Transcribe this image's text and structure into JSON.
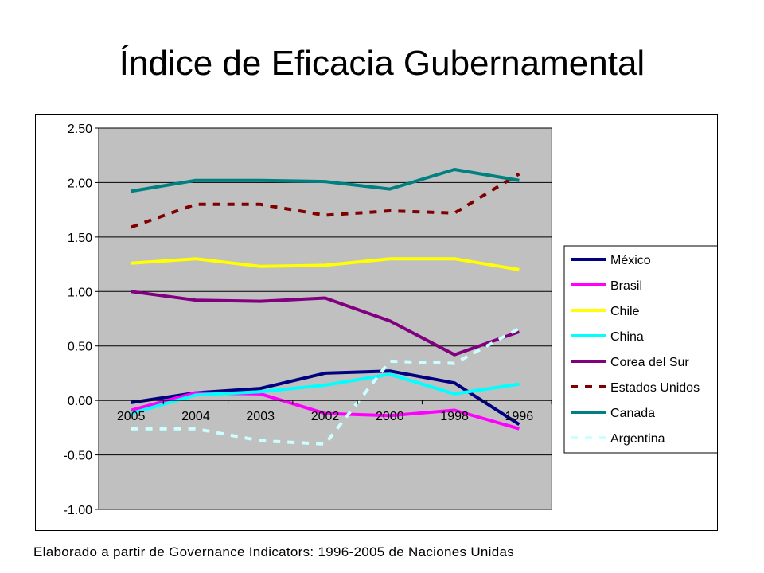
{
  "slide": {
    "title": "Índice de Eficacia Gubernamental",
    "source": "Elaborado a partir de Governance Indicators: 1996-2005 de Naciones Unidas"
  },
  "chart_data": {
    "type": "line",
    "title": "",
    "xlabel": "",
    "ylabel": "",
    "categories": [
      "2005",
      "2004",
      "2003",
      "2002",
      "2000",
      "1998",
      "1996"
    ],
    "ylim": [
      -1.0,
      2.5
    ],
    "ytick_step": 0.5,
    "ytick_labels": [
      "-1.00",
      "-0.50",
      "0.00",
      "0.50",
      "1.00",
      "1.50",
      "2.00",
      "2.50"
    ],
    "grid": true,
    "plot_background": "#c0c0c0",
    "legend_position": "right",
    "series": [
      {
        "name": "México",
        "color": "#000080",
        "dash": false,
        "values": [
          -0.02,
          0.07,
          0.11,
          0.25,
          0.27,
          0.16,
          -0.22
        ]
      },
      {
        "name": "Brasil",
        "color": "#ff00ff",
        "dash": false,
        "values": [
          -0.09,
          0.07,
          0.06,
          -0.12,
          -0.14,
          -0.09,
          -0.26
        ]
      },
      {
        "name": "Chile",
        "color": "#ffff00",
        "dash": false,
        "values": [
          1.26,
          1.3,
          1.23,
          1.24,
          1.3,
          1.3,
          1.2
        ]
      },
      {
        "name": "China",
        "color": "#00ffff",
        "dash": false,
        "values": [
          -0.12,
          0.05,
          0.08,
          0.14,
          0.24,
          0.06,
          0.15
        ]
      },
      {
        "name": "Corea del Sur",
        "color": "#800080",
        "dash": false,
        "values": [
          1.0,
          0.92,
          0.91,
          0.94,
          0.73,
          0.42,
          0.63
        ]
      },
      {
        "name": "Estados Unidos",
        "color": "#800000",
        "dash": true,
        "values": [
          1.59,
          1.8,
          1.8,
          1.7,
          1.74,
          1.72,
          2.08
        ]
      },
      {
        "name": "Canada",
        "color": "#008080",
        "dash": false,
        "values": [
          1.92,
          2.02,
          2.02,
          2.01,
          1.94,
          2.12,
          2.02
        ]
      },
      {
        "name": "Argentina",
        "color": "#ccffff",
        "dash": true,
        "values": [
          -0.26,
          -0.26,
          -0.37,
          -0.4,
          0.36,
          0.34,
          0.66
        ]
      }
    ]
  }
}
